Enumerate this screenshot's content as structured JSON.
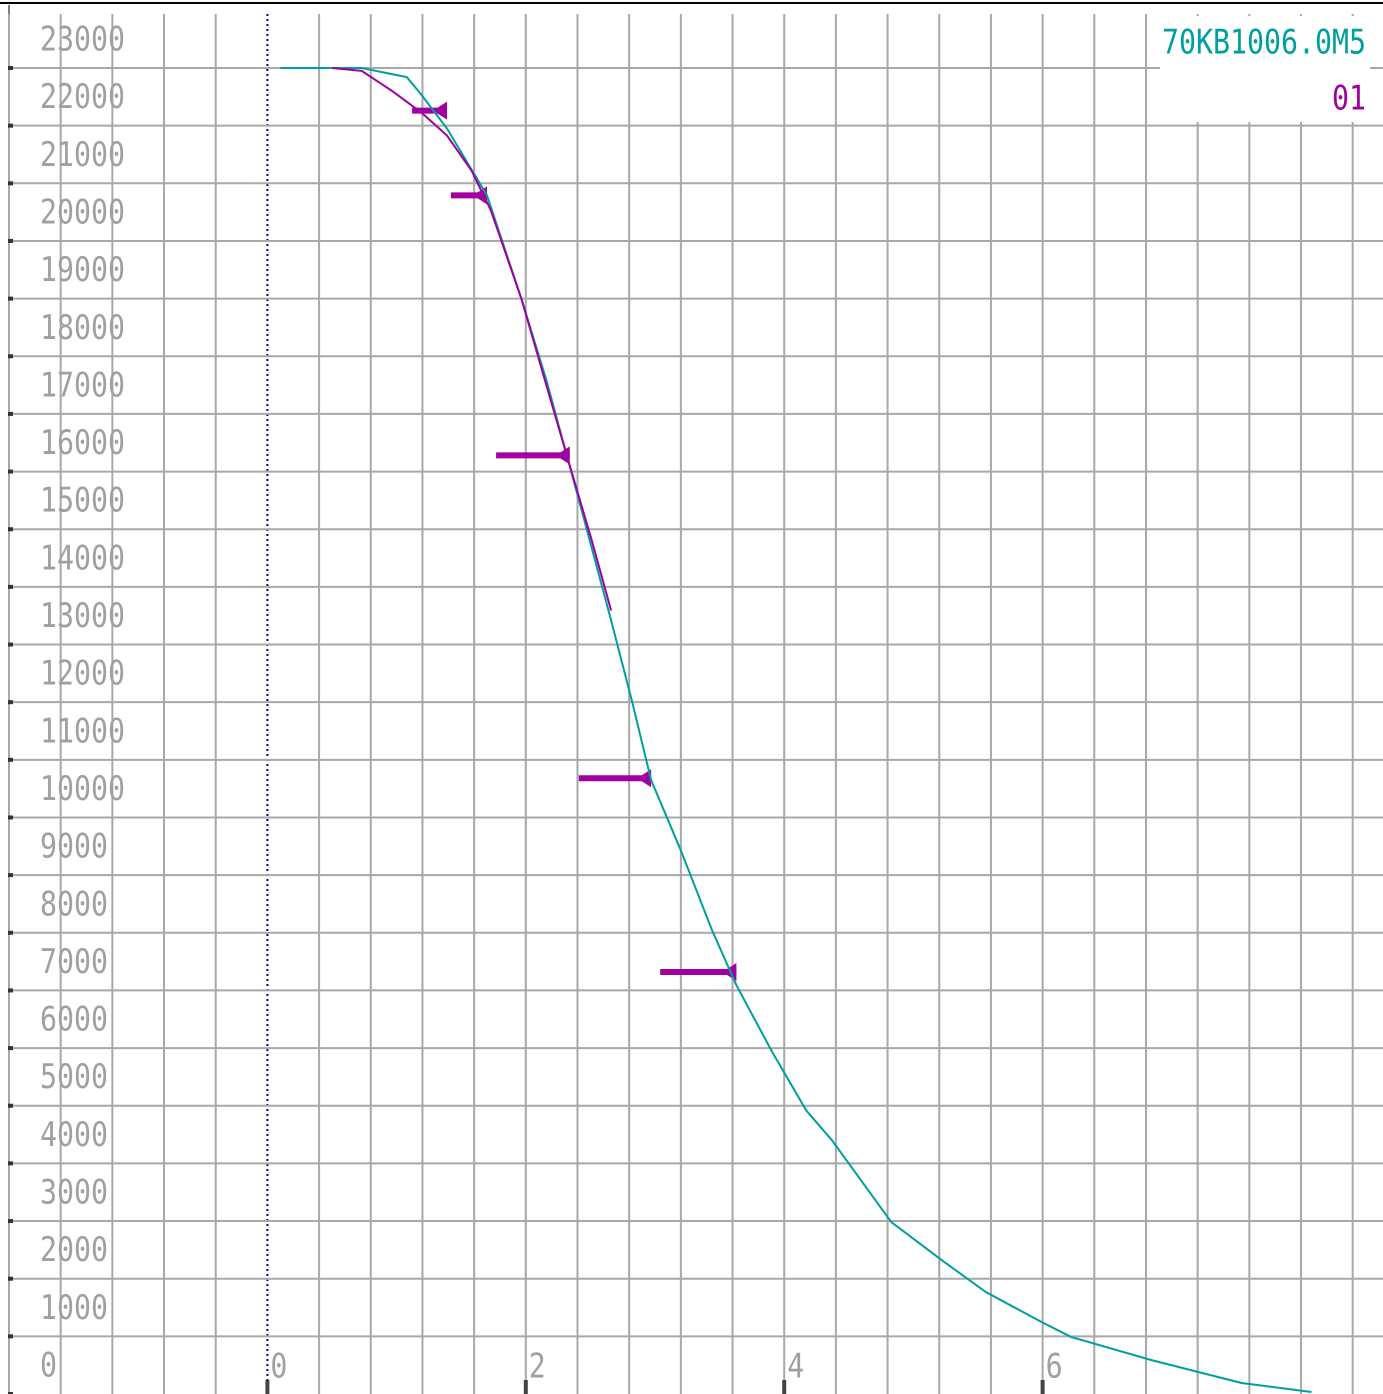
{
  "chart_data": {
    "type": "line",
    "legend_title": "70KB1006.0M5",
    "legend_label": "01",
    "xlim": [
      -2,
      8.65
    ],
    "ylim": [
      0,
      23000
    ],
    "xticks": [
      0,
      2,
      4,
      6
    ],
    "xgrid": [
      -2,
      -1.6,
      -1.2,
      -0.8,
      -0.4,
      0,
      0.4,
      0.8,
      1.2,
      1.6,
      2,
      2.4,
      2.8,
      3.2,
      3.6,
      4,
      4.4,
      4.8,
      5.2,
      5.6,
      6,
      6.4,
      6.8,
      7.2,
      7.6,
      8,
      8.4
    ],
    "yticks": [
      0,
      1000,
      2000,
      3000,
      4000,
      5000,
      6000,
      7000,
      8000,
      9000,
      10000,
      11000,
      12000,
      13000,
      14000,
      15000,
      16000,
      17000,
      18000,
      19000,
      20000,
      21000,
      22000,
      23000
    ],
    "grid": true,
    "series": [
      {
        "color": "#009f9f",
        "x": [
          0.1,
          0.73,
          1.08,
          1.19,
          1.39,
          1.7,
          1.97,
          2.16,
          2.39,
          2.66,
          2.82,
          2.97,
          3.2,
          3.44,
          3.63,
          3.9,
          4.17,
          4.37,
          4.83,
          5.22,
          5.56,
          5.99,
          6.22,
          6.84,
          7.54,
          8.08
        ],
        "values": [
          23000,
          23000,
          22840,
          22540,
          21950,
          20790,
          18970,
          17580,
          15680,
          13420,
          12030,
          10650,
          9430,
          8050,
          7090,
          5960,
          4920,
          4400,
          2980,
          2320,
          1770,
          1250,
          990,
          590,
          190,
          35
        ]
      },
      {
        "color": "#a000a0",
        "x": [
          0.5,
          0.73,
          0.96,
          1.19,
          1.39,
          1.58,
          1.73,
          1.97,
          2.16,
          2.35,
          2.51,
          2.66
        ],
        "values": [
          23000,
          22950,
          22610,
          22230,
          21830,
          21220,
          20530,
          18970,
          17490,
          16030,
          14810,
          13590
        ]
      }
    ],
    "segments": {
      "color": "#a000a0",
      "x_start": [
        1.12,
        1.42,
        1.77,
        2.41,
        3.04
      ],
      "x_end": [
        1.39,
        1.7,
        2.34,
        2.97,
        3.63
      ],
      "values": [
        22260,
        20790,
        16280,
        10680,
        7320
      ]
    }
  }
}
